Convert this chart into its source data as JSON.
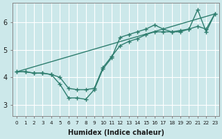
{
  "xlabel": "Humidex (Indice chaleur)",
  "bg_color": "#cce8ea",
  "grid_color": "#ffffff",
  "line_color": "#2e7d6e",
  "xlim": [
    -0.5,
    23.5
  ],
  "ylim": [
    2.6,
    6.7
  ],
  "xticks": [
    0,
    1,
    2,
    3,
    4,
    5,
    6,
    7,
    8,
    9,
    10,
    11,
    12,
    13,
    14,
    15,
    16,
    17,
    18,
    19,
    20,
    21,
    22,
    23
  ],
  "yticks": [
    3,
    4,
    5,
    6
  ],
  "line1_x": [
    0,
    1,
    2,
    3,
    4,
    5,
    6,
    7,
    8,
    9,
    10,
    11,
    12,
    13,
    14,
    15,
    16,
    17,
    18,
    19,
    20,
    21,
    22,
    23
  ],
  "line1_y": [
    4.2,
    4.2,
    4.15,
    4.15,
    4.1,
    3.75,
    3.25,
    3.25,
    3.2,
    3.55,
    4.3,
    4.7,
    5.45,
    5.55,
    5.65,
    5.75,
    5.9,
    5.75,
    5.65,
    5.65,
    5.75,
    6.45,
    5.65,
    6.3
  ],
  "line2_x": [
    0,
    1,
    2,
    3,
    4,
    5,
    6,
    7,
    8,
    9,
    10,
    11,
    12,
    13,
    14,
    15,
    16,
    17,
    18,
    19,
    20,
    21,
    22,
    23
  ],
  "line2_y": [
    4.2,
    4.2,
    4.15,
    4.15,
    4.1,
    4.0,
    3.6,
    3.55,
    3.55,
    3.6,
    4.35,
    4.75,
    5.15,
    5.3,
    5.4,
    5.55,
    5.65,
    5.65,
    5.65,
    5.7,
    5.75,
    5.85,
    5.75,
    6.3
  ],
  "line3_x": [
    0,
    23
  ],
  "line3_y": [
    4.2,
    6.3
  ],
  "marker_size": 4,
  "marker_ew": 1.0,
  "line_width": 1.0
}
